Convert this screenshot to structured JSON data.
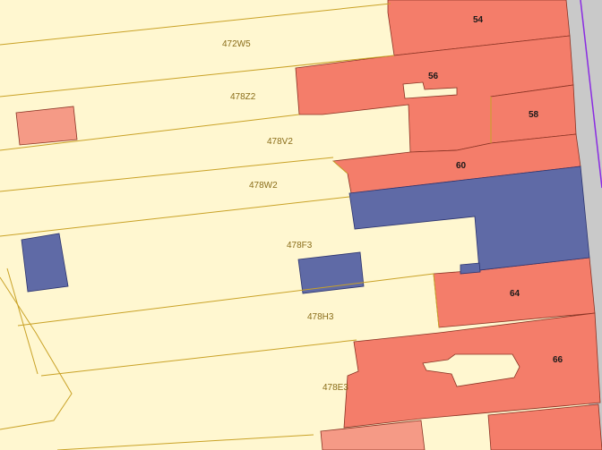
{
  "map": {
    "colors": {
      "background": "#fffacd",
      "parcel_fill": "#fff7d0",
      "parcel_line": "#c9a227",
      "building_red": "#f47d6a",
      "building_light_red": "#f59a86",
      "building_blue": "#5f6aa6",
      "building_edge": "#8a3324",
      "road": "#c9c9c9",
      "road_edge": "#8a2be2",
      "parcel_label": "#8a6d1a",
      "house_number": "#1a1a1a"
    },
    "parcel_labels": [
      {
        "id": "472W5",
        "text": "472W5"
      },
      {
        "id": "478Z2",
        "text": "478Z2"
      },
      {
        "id": "478V2",
        "text": "478V2"
      },
      {
        "id": "478W2",
        "text": "478W2"
      },
      {
        "id": "478F3",
        "text": "478F3"
      },
      {
        "id": "478H3",
        "text": "478H3"
      },
      {
        "id": "478E3",
        "text": "478E3"
      }
    ],
    "house_numbers": [
      {
        "id": "54",
        "text": "54"
      },
      {
        "id": "56",
        "text": "56"
      },
      {
        "id": "58",
        "text": "58"
      },
      {
        "id": "60",
        "text": "60"
      },
      {
        "id": "64",
        "text": "64"
      },
      {
        "id": "66",
        "text": "66"
      }
    ]
  }
}
